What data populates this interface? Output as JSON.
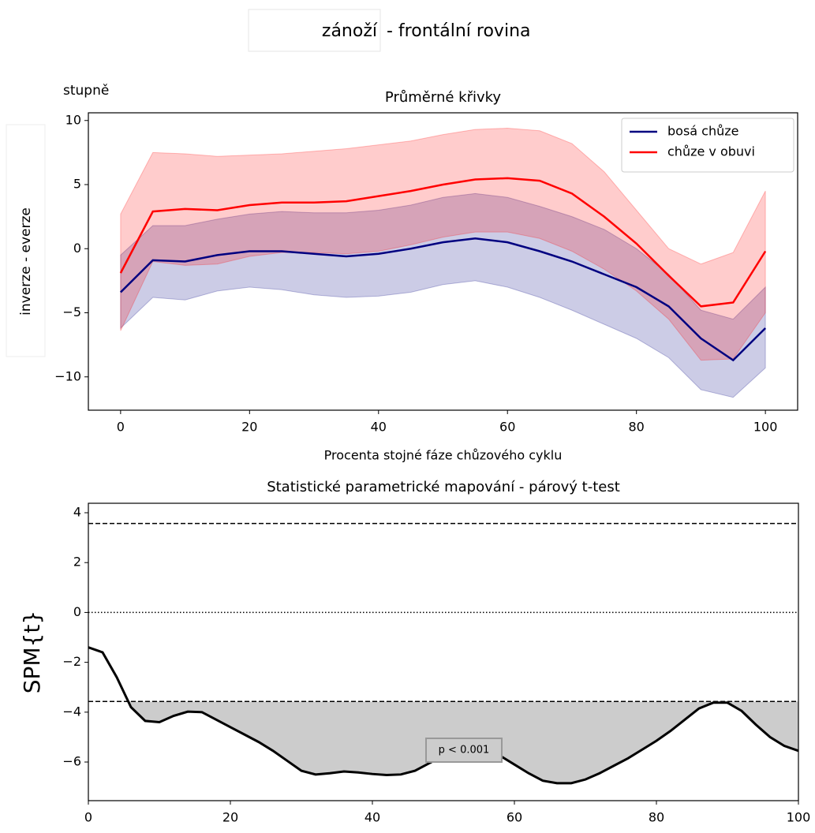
{
  "header": {
    "selector": "zánoží",
    "title": "- frontální rovina"
  },
  "unit_label": "stupně",
  "chart_data": [
    {
      "type": "line",
      "title": "Průměrné křivky",
      "xlabel": "Procenta stojné fáze chůzového cyklu",
      "ylabel": "inverze - everze",
      "x": [
        0,
        5,
        10,
        15,
        20,
        25,
        30,
        35,
        40,
        45,
        50,
        55,
        60,
        65,
        70,
        75,
        80,
        85,
        90,
        95,
        100
      ],
      "series": [
        {
          "name": "bosá chůze",
          "color": "#000080",
          "values": [
            -3.4,
            -0.9,
            -1.0,
            -0.5,
            -0.2,
            -0.2,
            -0.4,
            -0.6,
            -0.4,
            0,
            0.5,
            0.8,
            0.5,
            -0.2,
            -1.0,
            -2.0,
            -3.0,
            -4.5,
            -7.0,
            -8.7,
            -6.2
          ],
          "upper": [
            -0.5,
            1.8,
            1.8,
            2.3,
            2.7,
            2.9,
            2.8,
            2.8,
            3.0,
            3.4,
            4.0,
            4.3,
            4.0,
            3.3,
            2.5,
            1.5,
            0.0,
            -2.0,
            -4.8,
            -5.5,
            -3.0
          ],
          "lower": [
            -6.2,
            -3.8,
            -4.0,
            -3.3,
            -3.0,
            -3.2,
            -3.6,
            -3.8,
            -3.7,
            -3.4,
            -2.8,
            -2.5,
            -3.0,
            -3.8,
            -4.8,
            -5.9,
            -7.0,
            -8.5,
            -11.0,
            -11.6,
            -9.3
          ]
        },
        {
          "name": "chůze v obuvi",
          "color": "#ff0000",
          "values": [
            -1.9,
            2.9,
            3.1,
            3.0,
            3.4,
            3.6,
            3.6,
            3.7,
            4.1,
            4.5,
            5.0,
            5.4,
            5.5,
            5.3,
            4.3,
            2.5,
            0.4,
            -2.1,
            -4.5,
            -4.2,
            -0.2
          ],
          "upper": [
            2.7,
            7.5,
            7.4,
            7.2,
            7.3,
            7.4,
            7.6,
            7.8,
            8.1,
            8.4,
            8.9,
            9.3,
            9.4,
            9.2,
            8.2,
            6.0,
            3.0,
            0.0,
            -1.2,
            -0.3,
            4.5
          ],
          "lower": [
            -6.4,
            -1.0,
            -1.3,
            -1.2,
            -0.6,
            -0.3,
            -0.3,
            -0.4,
            -0.2,
            0.3,
            0.9,
            1.3,
            1.3,
            0.8,
            -0.2,
            -1.6,
            -3.3,
            -5.5,
            -8.7,
            -8.6,
            -5.0
          ]
        }
      ],
      "xlim": [
        -5,
        105
      ],
      "ylim": [
        -12.6,
        10.6
      ],
      "xticks": [
        0,
        20,
        40,
        60,
        80,
        100
      ],
      "yticks": [
        {
          "value": -10,
          "label": "−10"
        },
        {
          "value": -5,
          "label": "−5"
        },
        0,
        5,
        10
      ],
      "legend": "upper right"
    },
    {
      "type": "line",
      "title": "Statistické parametrické mapování - párový t-test",
      "ylabel": "SPM{t}",
      "x": [
        0,
        2,
        4,
        6,
        8,
        10,
        12,
        14,
        16,
        18,
        20,
        22,
        24,
        26,
        28,
        30,
        32,
        34,
        36,
        38,
        40,
        42,
        44,
        46,
        48,
        50,
        52,
        54,
        56,
        58,
        60,
        62,
        64,
        66,
        68,
        70,
        72,
        74,
        76,
        78,
        80,
        82,
        84,
        86,
        88,
        90,
        92,
        94,
        96,
        98,
        100
      ],
      "values": [
        -1.4,
        -1.6,
        -2.6,
        -3.8,
        -4.35,
        -4.4,
        -4.15,
        -3.98,
        -4.0,
        -4.3,
        -4.6,
        -4.9,
        -5.2,
        -5.55,
        -5.95,
        -6.35,
        -6.5,
        -6.45,
        -6.38,
        -6.42,
        -6.48,
        -6.52,
        -6.5,
        -6.35,
        -6.05,
        -5.75,
        -5.55,
        -5.45,
        -5.5,
        -5.75,
        -6.1,
        -6.45,
        -6.75,
        -6.85,
        -6.85,
        -6.7,
        -6.45,
        -6.15,
        -5.85,
        -5.5,
        -5.15,
        -4.75,
        -4.3,
        -3.85,
        -3.62,
        -3.62,
        -3.95,
        -4.5,
        -5.0,
        -5.35,
        -5.55
      ],
      "color": "#000000",
      "thresholds": [
        3.57,
        -3.57
      ],
      "zero_line": 0,
      "fill_color": "#cccccc",
      "annotation": "p < 0.001",
      "xlim": [
        0,
        100
      ],
      "ylim": [
        -7.55,
        4.38
      ],
      "xticks": [
        0,
        20,
        40,
        60,
        80,
        100
      ],
      "yticks": [
        {
          "value": -6,
          "label": "−6"
        },
        {
          "value": -4,
          "label": "−4"
        },
        {
          "value": -2,
          "label": "−2"
        },
        0,
        2,
        4
      ]
    }
  ]
}
